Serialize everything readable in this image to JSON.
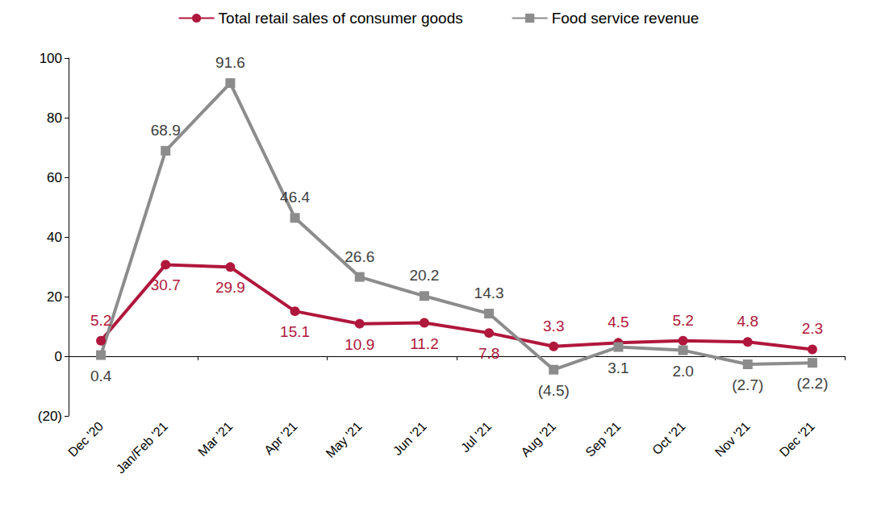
{
  "chart_data": {
    "type": "line",
    "categories": [
      "Dec '20",
      "Jan/Feb '21",
      "Mar '21",
      "Apr '21",
      "May '21",
      "Jun '21",
      "Jul '21",
      "Aug '21",
      "Sep '21",
      "Oct '21",
      "Nov '21",
      "Dec '21"
    ],
    "series": [
      {
        "name": "Total retail sales of consumer goods",
        "color": "#B0173C",
        "marker": "circle",
        "line_style": "solid",
        "values": [
          5.2,
          30.7,
          29.9,
          15.1,
          10.9,
          11.2,
          7.8,
          3.3,
          4.5,
          5.2,
          4.8,
          2.3
        ]
      },
      {
        "name": "Food service revenue",
        "color": "#8C8C8C",
        "marker": "square",
        "line_style": "solid",
        "values": [
          0.4,
          68.9,
          91.6,
          46.4,
          26.6,
          20.2,
          14.3,
          -4.5,
          3.1,
          2.0,
          -2.7,
          -2.2
        ],
        "value_labels": [
          "0.4",
          "68.9",
          "91.6",
          "46.4",
          "26.6",
          "20.2",
          "14.3",
          "(4.5)",
          "3.1",
          "2.0",
          "(2.7)",
          "(2.2)"
        ]
      }
    ],
    "ylim": [
      -20,
      100
    ],
    "yticks": [
      {
        "value": -20,
        "label": "(20)"
      },
      0,
      20,
      40,
      60,
      80,
      100
    ],
    "grid": false,
    "legend": "top",
    "data_labels": true
  }
}
